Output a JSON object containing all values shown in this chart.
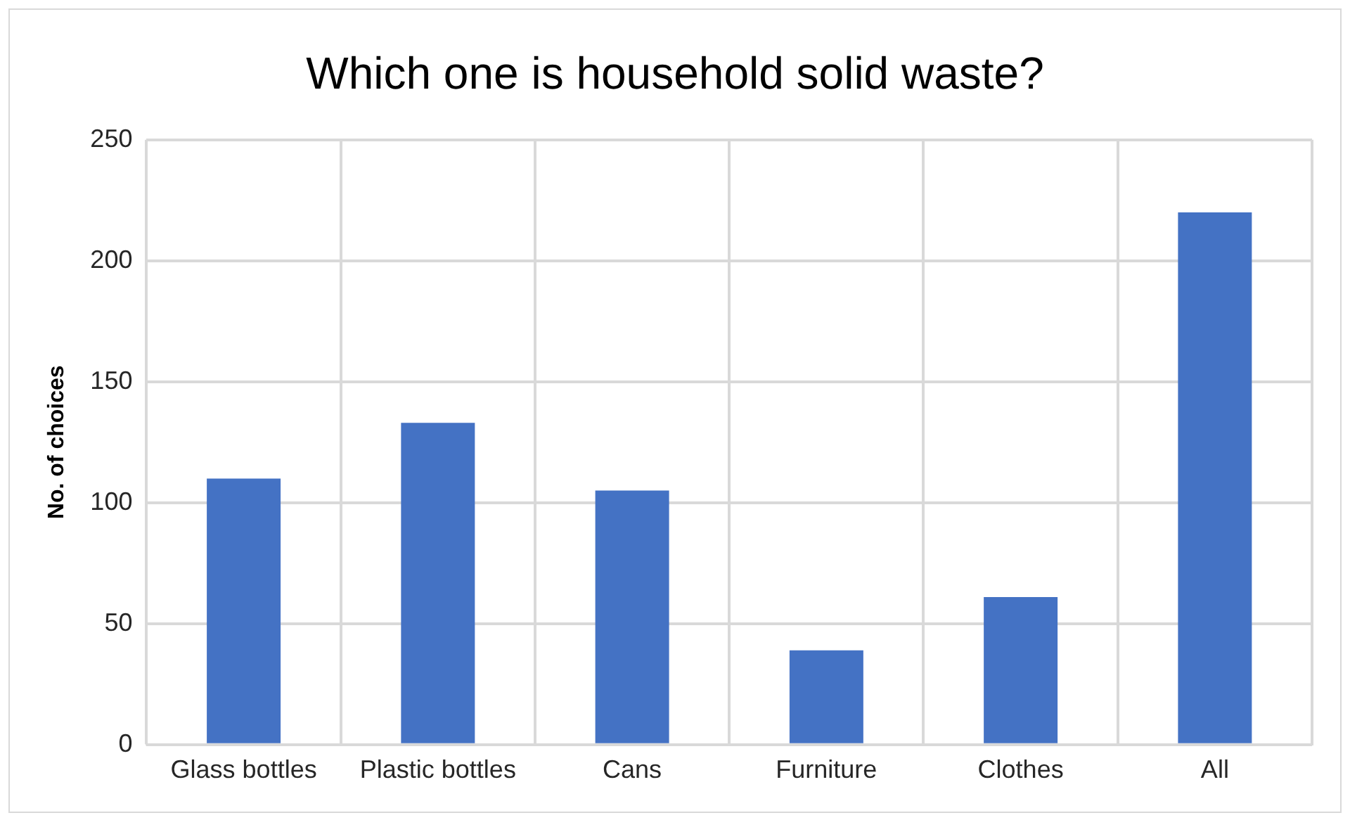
{
  "chart_data": {
    "type": "bar",
    "title": "Which one is household solid waste?",
    "ylabel": "No. of choices",
    "categories": [
      "Glass bottles",
      "Plastic bottles",
      "Cans",
      "Furniture",
      "Clothes",
      "All"
    ],
    "values": [
      110,
      133,
      105,
      39,
      61,
      220
    ],
    "color": "#4472c4",
    "ylim": [
      0,
      250
    ],
    "yticks": [
      0,
      50,
      100,
      150,
      200,
      250
    ],
    "grid": true
  }
}
